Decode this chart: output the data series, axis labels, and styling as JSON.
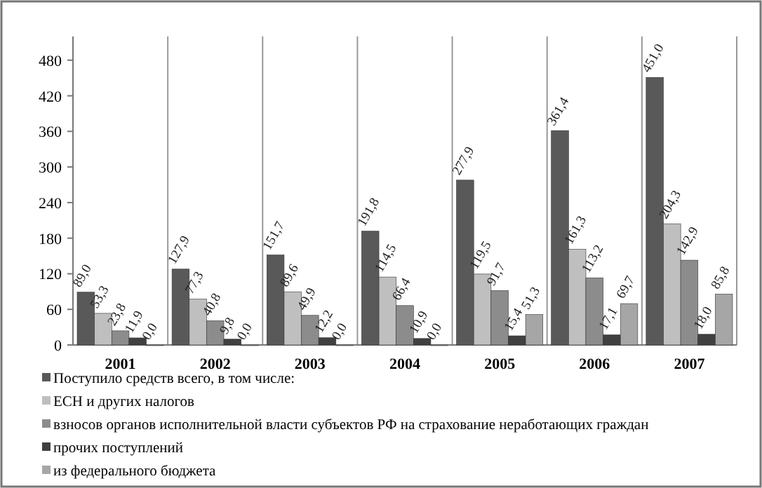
{
  "chart_data": {
    "type": "bar",
    "categories": [
      "2001",
      "2002",
      "2003",
      "2004",
      "2005",
      "2006",
      "2007"
    ],
    "series": [
      {
        "name": "Поступило средств всего, в том числе:",
        "color": "#595959",
        "values": [
          89.0,
          127.9,
          151.7,
          191.8,
          277.9,
          361.4,
          451.0
        ],
        "value_labels": [
          "89,0",
          "127,9",
          "151,7",
          "191,8",
          "277,9",
          "361,4",
          "451,0"
        ]
      },
      {
        "name": "ЕСН и других налогов",
        "color": "#bfbfbf",
        "values": [
          53.3,
          77.3,
          89.6,
          114.5,
          119.5,
          161.3,
          204.3
        ],
        "value_labels": [
          "53,3",
          "77,3",
          "89,6",
          "114,5",
          "119,5",
          "161,3",
          "204,3"
        ]
      },
      {
        "name": "взносов органов исполнительной власти субъектов РФ на страхование неработающих граждан",
        "color": "#8c8c8c",
        "values": [
          23.8,
          40.8,
          49.9,
          66.4,
          91.7,
          113.2,
          142.9
        ],
        "value_labels": [
          "23,8",
          "40,8",
          "49,9",
          "66,4",
          "91,7",
          "113,2",
          "142,9"
        ]
      },
      {
        "name": "прочих поступлений",
        "color": "#404040",
        "values": [
          11.9,
          9.8,
          12.2,
          10.9,
          15.4,
          17.1,
          18.0
        ],
        "value_labels": [
          "11,9",
          "9,8",
          "12,2",
          "10,9",
          "15,4",
          "17,1",
          "18,0"
        ]
      },
      {
        "name": "из федерального бюджета",
        "color": "#a6a6a6",
        "values": [
          0.0,
          0.0,
          0.0,
          0.0,
          51.3,
          69.7,
          85.8
        ],
        "value_labels": [
          "0,0",
          "0,0",
          "0,0",
          "0,0",
          "51,3",
          "69,7",
          "85,8"
        ]
      }
    ],
    "ylim": [
      0,
      520
    ],
    "yticks": [
      0,
      60,
      120,
      180,
      240,
      300,
      360,
      420,
      480
    ],
    "grid": "x",
    "legend": "bottom left"
  }
}
